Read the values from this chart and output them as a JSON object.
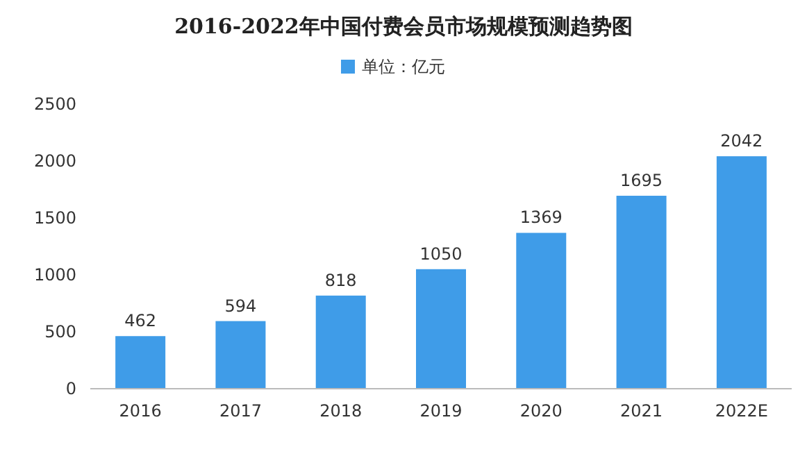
{
  "chart_data": {
    "type": "bar",
    "title": "2016-2022年中国付费会员市场规模预测趋势图",
    "categories": [
      "2016",
      "2017",
      "2018",
      "2019",
      "2020",
      "2021",
      "2022E"
    ],
    "series": [
      {
        "name": "单位：亿元",
        "color": "#3f9ce8",
        "values": [
          462,
          594,
          818,
          1050,
          1369,
          1695,
          2042
        ]
      }
    ],
    "ylim": [
      0,
      2500
    ],
    "yticks": [
      0,
      500,
      1000,
      1500,
      2000,
      2500
    ],
    "data_labels": true,
    "legend": "top",
    "grid": false
  }
}
